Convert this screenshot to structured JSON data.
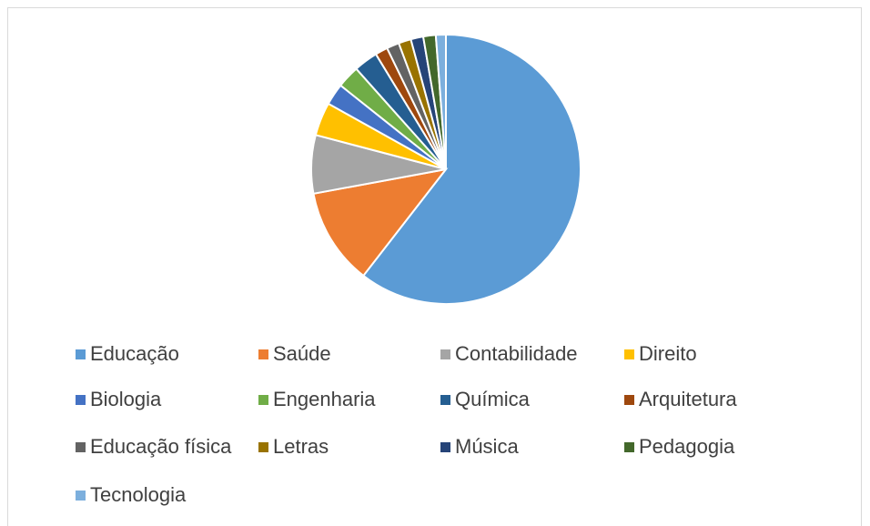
{
  "chart_data": {
    "type": "pie",
    "categories": [
      "Educação",
      "Saúde",
      "Contabilidade",
      "Direito",
      "Biologia",
      "Engenharia",
      "Química",
      "Arquitetura",
      "Educação física",
      "Letras",
      "Música",
      "Pedagogia",
      "Tecnologia"
    ],
    "values": [
      60.5,
      11.6,
      7,
      4,
      2.6,
      2.7,
      2.9,
      1.5,
      1.5,
      1.5,
      1.5,
      1.5,
      1.2
    ],
    "colors": [
      "#5b9bd5",
      "#ed7d31",
      "#a5a5a5",
      "#ffc000",
      "#4472c4",
      "#70ad47",
      "#255e91",
      "#9e480e",
      "#636363",
      "#997300",
      "#264478",
      "#43682b",
      "#7cafdd"
    ],
    "legend": "bottom"
  }
}
